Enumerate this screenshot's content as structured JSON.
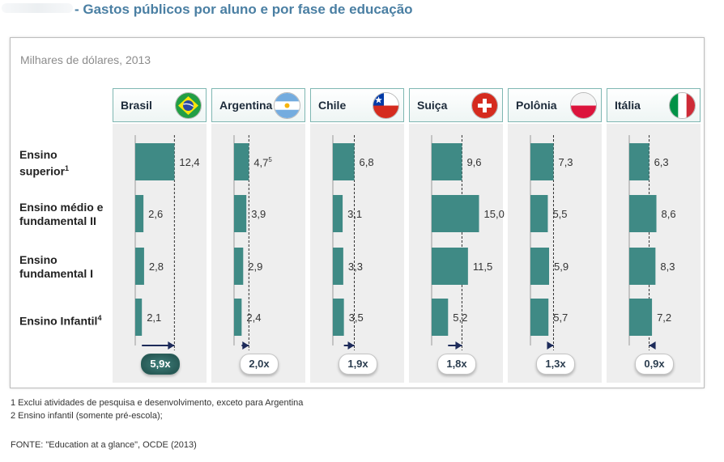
{
  "title": "- Gastos públicos por aluno e por fase de educação",
  "units_label": "Milhares de dólares, 2013",
  "colors": {
    "bar": "#3f8a85",
    "ratio_badge_highlight": "#2e6763",
    "header_border": "#7fb7b2"
  },
  "chart_data": {
    "type": "bar",
    "orientation": "horizontal",
    "panels": "small-multiples",
    "rows": [
      {
        "label": "Ensino superior",
        "sup": "1"
      },
      {
        "label": "Ensino médio e fundamental II",
        "sup": ""
      },
      {
        "label": "Ensino fundamental I",
        "sup": ""
      },
      {
        "label": "Ensino Infantil",
        "sup": "4"
      }
    ],
    "countries": [
      {
        "name": "Brasil",
        "flag": "brazil-flag-icon",
        "values": [
          12.4,
          2.6,
          2.8,
          2.1
        ],
        "value_labels": [
          "12,4",
          "2,6",
          "2,8",
          "2,1"
        ],
        "label_sups": [
          "",
          "",
          "",
          ""
        ],
        "ratio": "5,9x",
        "highlight": true,
        "arrow": "right"
      },
      {
        "name": "Argentina",
        "flag": "argentina-flag-icon",
        "values": [
          4.7,
          3.9,
          2.9,
          2.4
        ],
        "value_labels": [
          "4,7",
          "3,9",
          "2,9",
          "2,4"
        ],
        "label_sups": [
          "5",
          "",
          "",
          ""
        ],
        "ratio": "2,0x",
        "highlight": false,
        "arrow": "right"
      },
      {
        "name": "Chile",
        "flag": "chile-flag-icon",
        "values": [
          6.8,
          3.1,
          3.3,
          3.5
        ],
        "value_labels": [
          "6,8",
          "3,1",
          "3,3",
          "3,5"
        ],
        "label_sups": [
          "",
          "",
          "",
          ""
        ],
        "ratio": "1,9x",
        "highlight": false,
        "arrow": "right"
      },
      {
        "name": "Suiça",
        "flag": "switzerland-flag-icon",
        "values": [
          9.6,
          15.0,
          11.5,
          5.2
        ],
        "value_labels": [
          "9,6",
          "15,0",
          "11,5",
          "5,2"
        ],
        "label_sups": [
          "",
          "",
          "",
          ""
        ],
        "ratio": "1,8x",
        "highlight": false,
        "arrow": "right"
      },
      {
        "name": "Polônia",
        "flag": "poland-flag-icon",
        "values": [
          7.3,
          5.5,
          5.9,
          5.7
        ],
        "value_labels": [
          "7,3",
          "5,5",
          "5,9",
          "5,7"
        ],
        "label_sups": [
          "",
          "",
          "",
          ""
        ],
        "ratio": "1,3x",
        "highlight": false,
        "arrow": "right"
      },
      {
        "name": "Itália",
        "flag": "italy-flag-icon",
        "values": [
          6.3,
          8.6,
          8.3,
          7.2
        ],
        "value_labels": [
          "6,3",
          "8,6",
          "8,3",
          "7,2"
        ],
        "label_sups": [
          "",
          "",
          "",
          ""
        ],
        "ratio": "0,9x",
        "highlight": false,
        "arrow": "left"
      }
    ],
    "xlim": [
      0,
      15
    ]
  },
  "footnotes": [
    "1 Exclui atividades de pesquisa e desenvolvimento,  exceto para Argentina",
    "2 Ensino infantil (somente pré-escola);"
  ],
  "source": "FONTE: \"Education at a glance\", OCDE (2013)"
}
